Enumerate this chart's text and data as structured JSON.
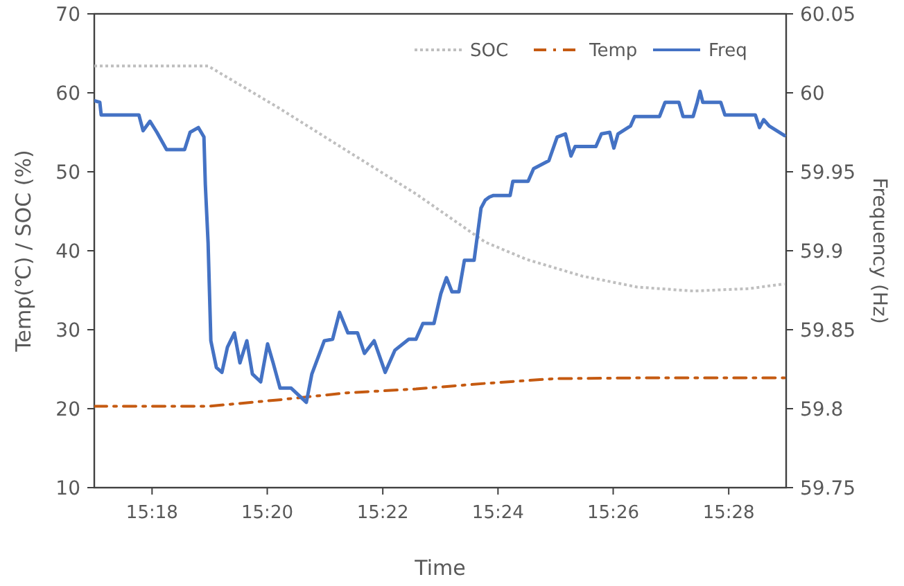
{
  "chart_data": {
    "type": "line",
    "xlabel": "Time",
    "ylabel": "Temp(℃) / SOC (%)",
    "y2label": "Frequency (Hz)",
    "xlim": [
      15.2833,
      15.4833
    ],
    "xticks": [
      {
        "value": 15.3,
        "label": "15:18"
      },
      {
        "value": 15.3333,
        "label": "15:20"
      },
      {
        "value": 15.3667,
        "label": "15:22"
      },
      {
        "value": 15.4,
        "label": "15:24"
      },
      {
        "value": 15.4333,
        "label": "15:26"
      },
      {
        "value": 15.4667,
        "label": "15:28"
      }
    ],
    "ylim": [
      10,
      70
    ],
    "yticks": [
      10,
      20,
      30,
      40,
      50,
      60,
      70
    ],
    "y2lim": [
      59.75,
      60.05
    ],
    "y2ticks": [
      59.75,
      59.8,
      59.85,
      59.9,
      59.95,
      60,
      60.05
    ],
    "grid": false,
    "legend": "top right",
    "series": [
      {
        "name": "SOC",
        "color": "#bfbfbf",
        "line_style": "dotted",
        "x": [
          15.2833,
          15.3162,
          15.3362,
          15.3562,
          15.3763,
          15.3963,
          15.4083,
          15.4243,
          15.4403,
          15.4564,
          15.4724,
          15.4828
        ],
        "values": [
          63.4,
          63.4,
          58.2,
          52.7,
          47.2,
          41.1,
          38.9,
          36.8,
          35.4,
          34.9,
          35.2,
          35.8
        ]
      },
      {
        "name": "Temp",
        "color": "#c55a11",
        "line_style": "dashed",
        "x": [
          15.2833,
          15.3162,
          15.3362,
          15.3562,
          15.3763,
          15.3963,
          15.4163,
          15.4403,
          15.4828
        ],
        "values": [
          20.3,
          20.3,
          21.1,
          22.0,
          22.5,
          23.2,
          23.8,
          23.9,
          23.9
        ]
      },
      {
        "name": "Freq",
        "color": "#4472c4",
        "line_style": "solid",
        "axis": "y2",
        "x": [
          15.2833,
          15.2849,
          15.2853,
          15.2962,
          15.2974,
          15.2994,
          15.3014,
          15.3042,
          15.3094,
          15.311,
          15.3134,
          15.315,
          15.3154,
          15.3162,
          15.3166,
          15.317,
          15.3186,
          15.3202,
          15.3218,
          15.3238,
          15.3254,
          15.3274,
          15.329,
          15.3314,
          15.3334,
          15.335,
          15.337,
          15.3402,
          15.3446,
          15.3462,
          15.3498,
          15.3522,
          15.3542,
          15.3566,
          15.3594,
          15.3614,
          15.3642,
          15.3674,
          15.3702,
          15.3742,
          15.3763,
          15.3783,
          15.3815,
          15.3835,
          15.3851,
          15.3867,
          15.3887,
          15.3903,
          15.3931,
          15.3951,
          15.3963,
          15.3975,
          15.3987,
          15.4035,
          15.4043,
          15.4087,
          15.4103,
          15.4147,
          15.4171,
          15.4195,
          15.4211,
          15.4223,
          15.4283,
          15.4299,
          15.4323,
          15.4335,
          15.4347,
          15.4383,
          15.4395,
          15.4467,
          15.4483,
          15.4523,
          15.4535,
          15.4564,
          15.4576,
          15.4584,
          15.4592,
          15.4644,
          15.4656,
          15.4744,
          15.4756,
          15.4768,
          15.4784,
          15.4828
        ],
        "values": [
          59.995,
          59.994,
          59.986,
          59.986,
          59.976,
          59.982,
          59.975,
          59.964,
          59.964,
          59.975,
          59.978,
          59.972,
          59.942,
          59.905,
          59.874,
          59.843,
          59.826,
          59.823,
          59.839,
          59.848,
          59.829,
          59.843,
          59.822,
          59.817,
          59.841,
          59.829,
          59.813,
          59.813,
          59.804,
          59.822,
          59.843,
          59.844,
          59.861,
          59.848,
          59.848,
          59.835,
          59.843,
          59.823,
          59.837,
          59.844,
          59.844,
          59.854,
          59.854,
          59.873,
          59.883,
          59.874,
          59.874,
          59.894,
          59.894,
          59.927,
          59.932,
          59.934,
          59.935,
          59.935,
          59.944,
          59.944,
          59.952,
          59.957,
          59.972,
          59.974,
          59.96,
          59.966,
          59.966,
          59.974,
          59.975,
          59.965,
          59.974,
          59.979,
          59.985,
          59.985,
          59.994,
          59.994,
          59.985,
          59.985,
          59.994,
          60.001,
          59.994,
          59.994,
          59.986,
          59.986,
          59.978,
          59.983,
          59.979,
          59.973
        ]
      }
    ]
  }
}
